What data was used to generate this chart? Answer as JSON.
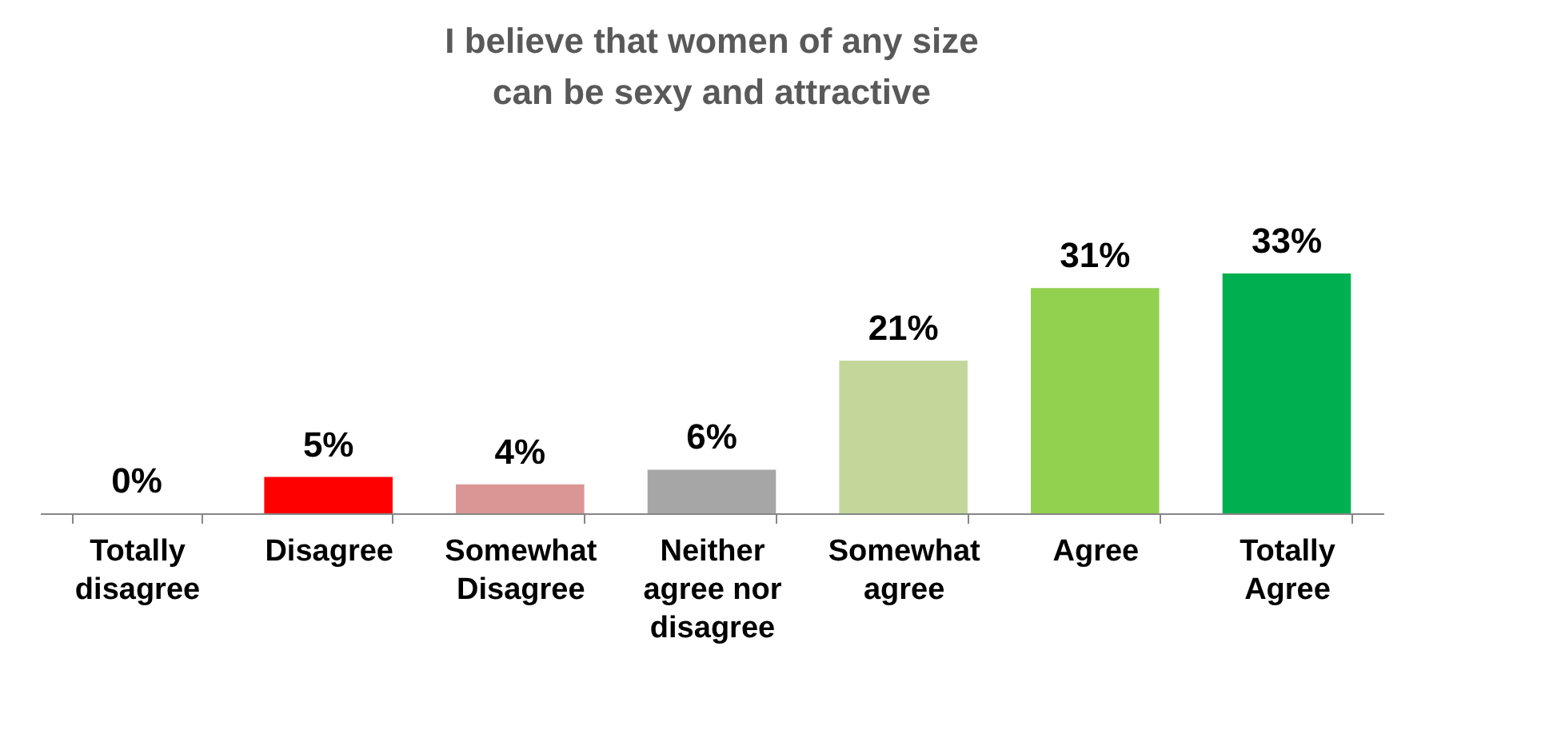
{
  "chart_data": {
    "type": "bar",
    "title": [
      "I believe that women of any size",
      "can be sexy and attractive"
    ],
    "categories": [
      "Totally\ndisagree",
      "Disagree",
      "Somewhat\nDisagree",
      "Neither\nagree nor\ndisagree",
      "Somewhat\nagree",
      "Agree",
      "Totally\nAgree"
    ],
    "values": [
      0,
      5,
      4,
      6,
      21,
      31,
      33
    ],
    "colors": [
      "#c00000",
      "#ff0000",
      "#d99694",
      "#a6a6a6",
      "#c4d79b",
      "#92d050",
      "#00b050"
    ],
    "value_labels": [
      "0%",
      "5%",
      "4%",
      "6%",
      "21%",
      "31%",
      "33%"
    ]
  }
}
